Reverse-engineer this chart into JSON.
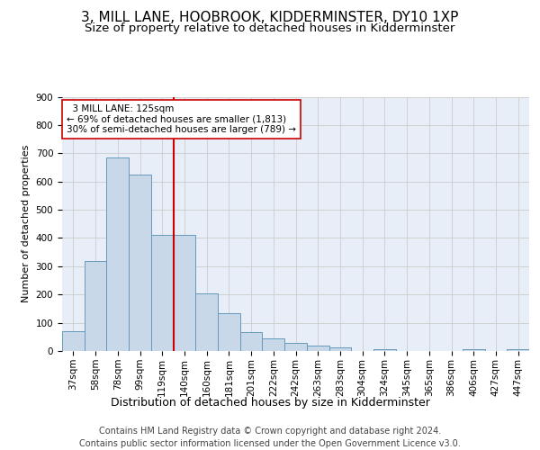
{
  "title1": "3, MILL LANE, HOOBROOK, KIDDERMINSTER, DY10 1XP",
  "title2": "Size of property relative to detached houses in Kidderminster",
  "xlabel": "Distribution of detached houses by size in Kidderminster",
  "ylabel": "Number of detached properties",
  "categories": [
    "37sqm",
    "58sqm",
    "78sqm",
    "99sqm",
    "119sqm",
    "140sqm",
    "160sqm",
    "181sqm",
    "201sqm",
    "222sqm",
    "242sqm",
    "263sqm",
    "283sqm",
    "304sqm",
    "324sqm",
    "345sqm",
    "365sqm",
    "386sqm",
    "406sqm",
    "427sqm",
    "447sqm"
  ],
  "values": [
    70,
    320,
    685,
    625,
    410,
    410,
    205,
    135,
    68,
    45,
    28,
    18,
    12,
    0,
    5,
    0,
    0,
    0,
    5,
    0,
    5
  ],
  "bar_color": "#c8d8e8",
  "bar_edge_color": "#6699bb",
  "vline_color": "#cc0000",
  "annotation_text": "  3 MILL LANE: 125sqm\n← 69% of detached houses are smaller (1,813)\n30% of semi-detached houses are larger (789) →",
  "annotation_box_color": "#ffffff",
  "annotation_box_edge": "#cc0000",
  "ylim": [
    0,
    900
  ],
  "yticks": [
    0,
    100,
    200,
    300,
    400,
    500,
    600,
    700,
    800,
    900
  ],
  "grid_color": "#cccccc",
  "bg_color": "#e8eef8",
  "footer": "Contains HM Land Registry data © Crown copyright and database right 2024.\nContains public sector information licensed under the Open Government Licence v3.0.",
  "title1_fontsize": 11,
  "title2_fontsize": 9.5,
  "xlabel_fontsize": 9,
  "ylabel_fontsize": 8,
  "tick_fontsize": 7.5,
  "footer_fontsize": 7,
  "ann_fontsize": 7.5
}
